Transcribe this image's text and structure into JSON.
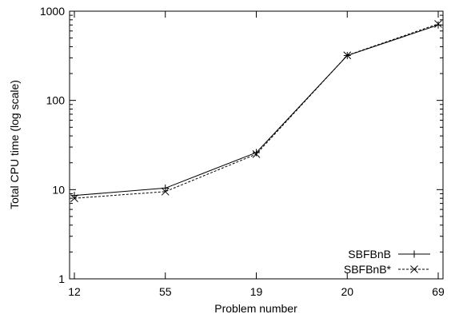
{
  "chart_data": {
    "type": "line",
    "xlabel": "Problem number",
    "ylabel": "Total CPU time (log scale)",
    "categories": [
      "12",
      "55",
      "19",
      "20",
      "69"
    ],
    "y_scale": "log",
    "ylim": [
      1,
      1000
    ],
    "y_ticks": [
      1,
      10,
      100,
      1000
    ],
    "y_tick_labels": [
      "1",
      "10",
      "100",
      "1000"
    ],
    "legend_position": "bottom-right",
    "grid": false,
    "series": [
      {
        "name": "SBFBnB",
        "values": [
          8.6,
          10.4,
          26,
          318,
          700
        ],
        "line": "solid",
        "marker": "plus"
      },
      {
        "name": "SBFBnB*",
        "values": [
          8.0,
          9.5,
          25,
          320,
          720
        ],
        "line": "dashed",
        "marker": "cross"
      }
    ]
  }
}
